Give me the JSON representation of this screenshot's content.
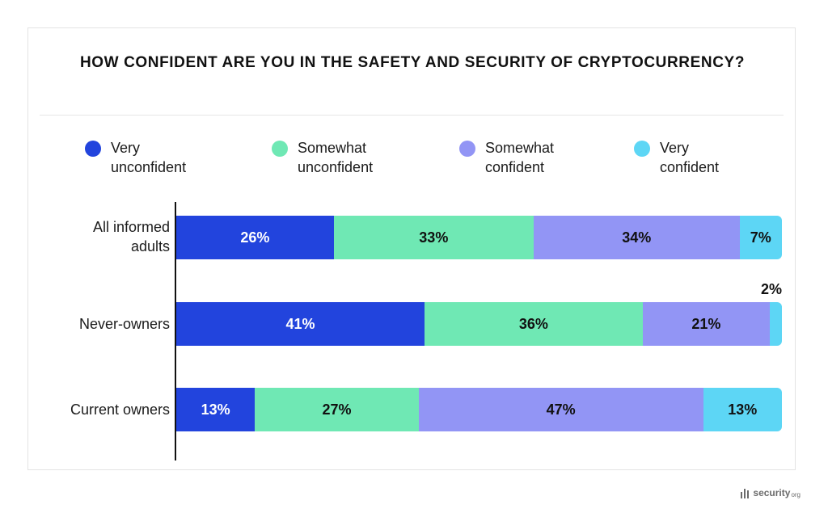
{
  "chart_data": {
    "type": "bar",
    "orientation": "horizontal",
    "stacked": true,
    "title": "HOW CONFIDENT ARE YOU IN THE SAFETY AND SECURITY OF CRYPTOCURRENCY?",
    "categories": [
      "All informed\nadults",
      "Never-owners",
      "Current owners"
    ],
    "series": [
      {
        "name": "Very\nunconfident",
        "color": "#2244dd",
        "label_color": "#ffffff",
        "values": [
          26,
          41,
          13
        ]
      },
      {
        "name": "Somewhat\nunconfident",
        "color": "#6fe8b4",
        "label_color": "#111111",
        "values": [
          33,
          36,
          27
        ]
      },
      {
        "name": "Somewhat\nconfident",
        "color": "#9295f5",
        "label_color": "#111111",
        "values": [
          34,
          21,
          47
        ]
      },
      {
        "name": "Very\nconfident",
        "color": "#5dd6f5",
        "label_color": "#111111",
        "values": [
          7,
          2,
          13
        ]
      }
    ],
    "data_labels": [
      [
        "26%",
        "33%",
        "34%",
        "7%"
      ],
      [
        "41%",
        "36%",
        "21%",
        "2%"
      ],
      [
        "13%",
        "27%",
        "47%",
        "13%"
      ]
    ],
    "xlim": [
      0,
      100
    ],
    "grid": false,
    "legend_position": "top"
  },
  "brand": {
    "name": "security",
    "suffix": "org"
  }
}
